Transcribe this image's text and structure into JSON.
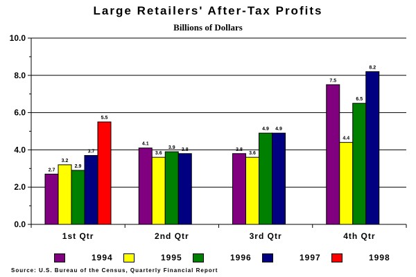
{
  "chart_data": {
    "type": "bar",
    "title": "Large Retailers' After-Tax Profits",
    "subtitle": "Billions of Dollars",
    "categories": [
      "1st Qtr",
      "2nd Qtr",
      "3rd Qtr",
      "4th Qtr"
    ],
    "series": [
      {
        "name": "1994",
        "color": "#800080",
        "values": [
          2.7,
          4.1,
          3.8,
          7.5
        ]
      },
      {
        "name": "1995",
        "color": "#ffff00",
        "values": [
          3.2,
          3.6,
          3.6,
          4.4
        ]
      },
      {
        "name": "1996",
        "color": "#008000",
        "values": [
          2.9,
          3.9,
          4.9,
          6.5
        ]
      },
      {
        "name": "1997",
        "color": "#000080",
        "values": [
          3.7,
          3.8,
          4.9,
          8.2
        ]
      },
      {
        "name": "1998",
        "color": "#ff0000",
        "values": [
          5.5,
          null,
          null,
          null
        ]
      }
    ],
    "ylim": [
      0,
      10
    ],
    "yticks": [
      "0.0",
      "2.0",
      "4.0",
      "6.0",
      "8.0",
      "10.0"
    ],
    "grid": true,
    "legend": "bottom",
    "xlabel": "",
    "ylabel": "",
    "source": "Source: U.S. Bureau of the Census, Quarterly Financial Report"
  }
}
